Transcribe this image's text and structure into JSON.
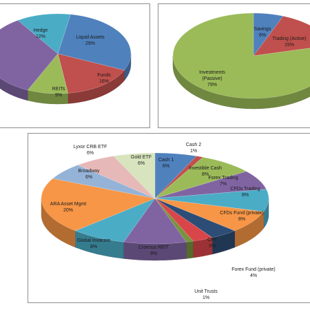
{
  "chart_data": [
    {
      "type": "pie",
      "slices": [
        {
          "label": "Liquid Assets",
          "value": 29,
          "pct": "29%",
          "color": "#4f81bd"
        },
        {
          "label": "Funds",
          "value": 16,
          "pct": "16%",
          "color": "#c0504d"
        },
        {
          "label": "REITs",
          "value": 9,
          "pct": "9%",
          "color": "#9bbb59"
        },
        {
          "label": "",
          "value": 34,
          "pct": "",
          "color": "#8064a2"
        },
        {
          "label": "Hedge",
          "value": 12,
          "pct": "12%",
          "color": "#4bacc6"
        }
      ]
    },
    {
      "type": "pie",
      "slices": [
        {
          "label": "Savings",
          "value": 6,
          "pct": "6%",
          "color": "#4f81bd"
        },
        {
          "label": "Trading (Active)",
          "value": 15,
          "pct": "15%",
          "color": "#c0504d"
        },
        {
          "label": "Investments (Passive)",
          "value": 79,
          "pct": "79%",
          "color": "#9bbb59"
        }
      ]
    },
    {
      "type": "pie",
      "slices": [
        {
          "label": "Cash 1",
          "value": 6,
          "pct": "6%",
          "color": "#4f81bd"
        },
        {
          "label": "Cash 2",
          "value": 1,
          "pct": "1%",
          "color": "#c0504d"
        },
        {
          "label": "Investible Cash",
          "value": 8,
          "pct": "8%",
          "color": "#9bbb59"
        },
        {
          "label": "Forex Trading",
          "value": 7,
          "pct": "7%",
          "color": "#8064a2"
        },
        {
          "label": "CFDs Trading",
          "value": 8,
          "pct": "8%",
          "color": "#4bacc6"
        },
        {
          "label": "CFDs Fund (private)",
          "value": 8,
          "pct": "8%",
          "color": "#f79646"
        },
        {
          "label": "Forex Fund (private)",
          "value": 4,
          "pct": "4%",
          "color": "#2c4d75"
        },
        {
          "label": "CPF",
          "value": 3,
          "pct": "3%",
          "color": "#d9464a"
        },
        {
          "label": "Unit Trusts",
          "value": 1,
          "pct": "1%",
          "color": "#77933c"
        },
        {
          "label": "Croesus REIT",
          "value": 9,
          "pct": "9%",
          "color": "#8064a2"
        },
        {
          "label": "Global Invacom",
          "value": 8,
          "pct": "8%",
          "color": "#4bacc6"
        },
        {
          "label": "ARA Asset Mgmt",
          "value": 20,
          "pct": "20%",
          "color": "#f79646"
        },
        {
          "label": "Broadway",
          "value": 6,
          "pct": "6%",
          "color": "#95b3d7"
        },
        {
          "label": "Lyxor CRB ETF",
          "value": 6,
          "pct": "6%",
          "color": "#e6b9b8"
        },
        {
          "label": "Gold ETF",
          "value": 6,
          "pct": "6%",
          "color": "#d7e4bd"
        }
      ]
    }
  ]
}
